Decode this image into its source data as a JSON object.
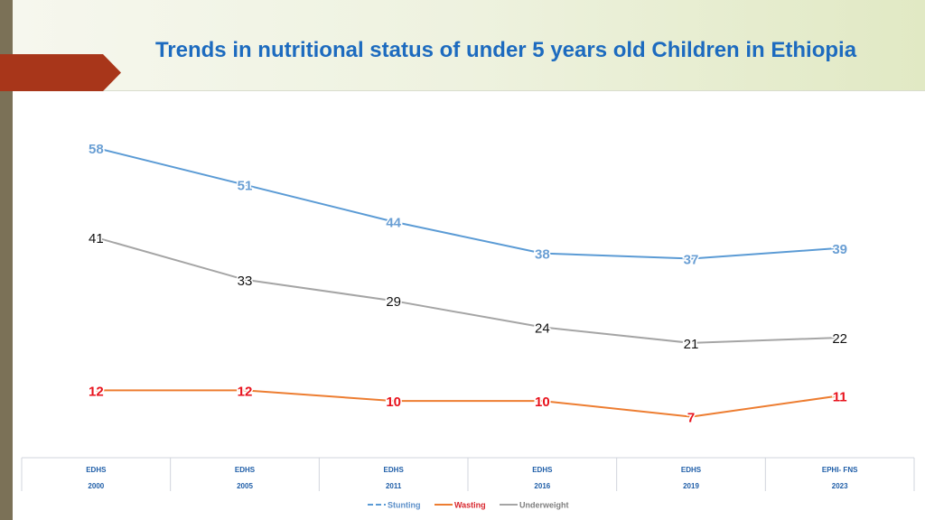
{
  "slide": {
    "title": "Trends in nutritional status of under 5 years old Children in Ethiopia"
  },
  "chart_data": {
    "type": "line",
    "title": "Trends in nutritional status of under 5 years old Children in Ethiopia",
    "categories": [
      [
        "EDHS",
        "2000"
      ],
      [
        "EDHS",
        "2005"
      ],
      [
        "EDHS",
        "2011"
      ],
      [
        "EDHS",
        "2016"
      ],
      [
        "EDHS",
        "2019"
      ],
      [
        "EPHI- FNS",
        "2023"
      ]
    ],
    "series": [
      {
        "name": "Stunting",
        "values": [
          58,
          51,
          44,
          38,
          37,
          39
        ],
        "color": "#5b9bd5",
        "label_color": "#6a9fd4"
      },
      {
        "name": "Wasting",
        "values": [
          12,
          12,
          10,
          10,
          7,
          11
        ],
        "color": "#ed7d31",
        "label_color": "#e8121c"
      },
      {
        "name": "Underweight",
        "values": [
          41,
          33,
          29,
          24,
          21,
          22
        ],
        "color": "#a5a5a5",
        "label_color": "#111111"
      }
    ],
    "ylim": [
      0,
      62
    ],
    "grid": false,
    "legend_position": "bottom"
  }
}
